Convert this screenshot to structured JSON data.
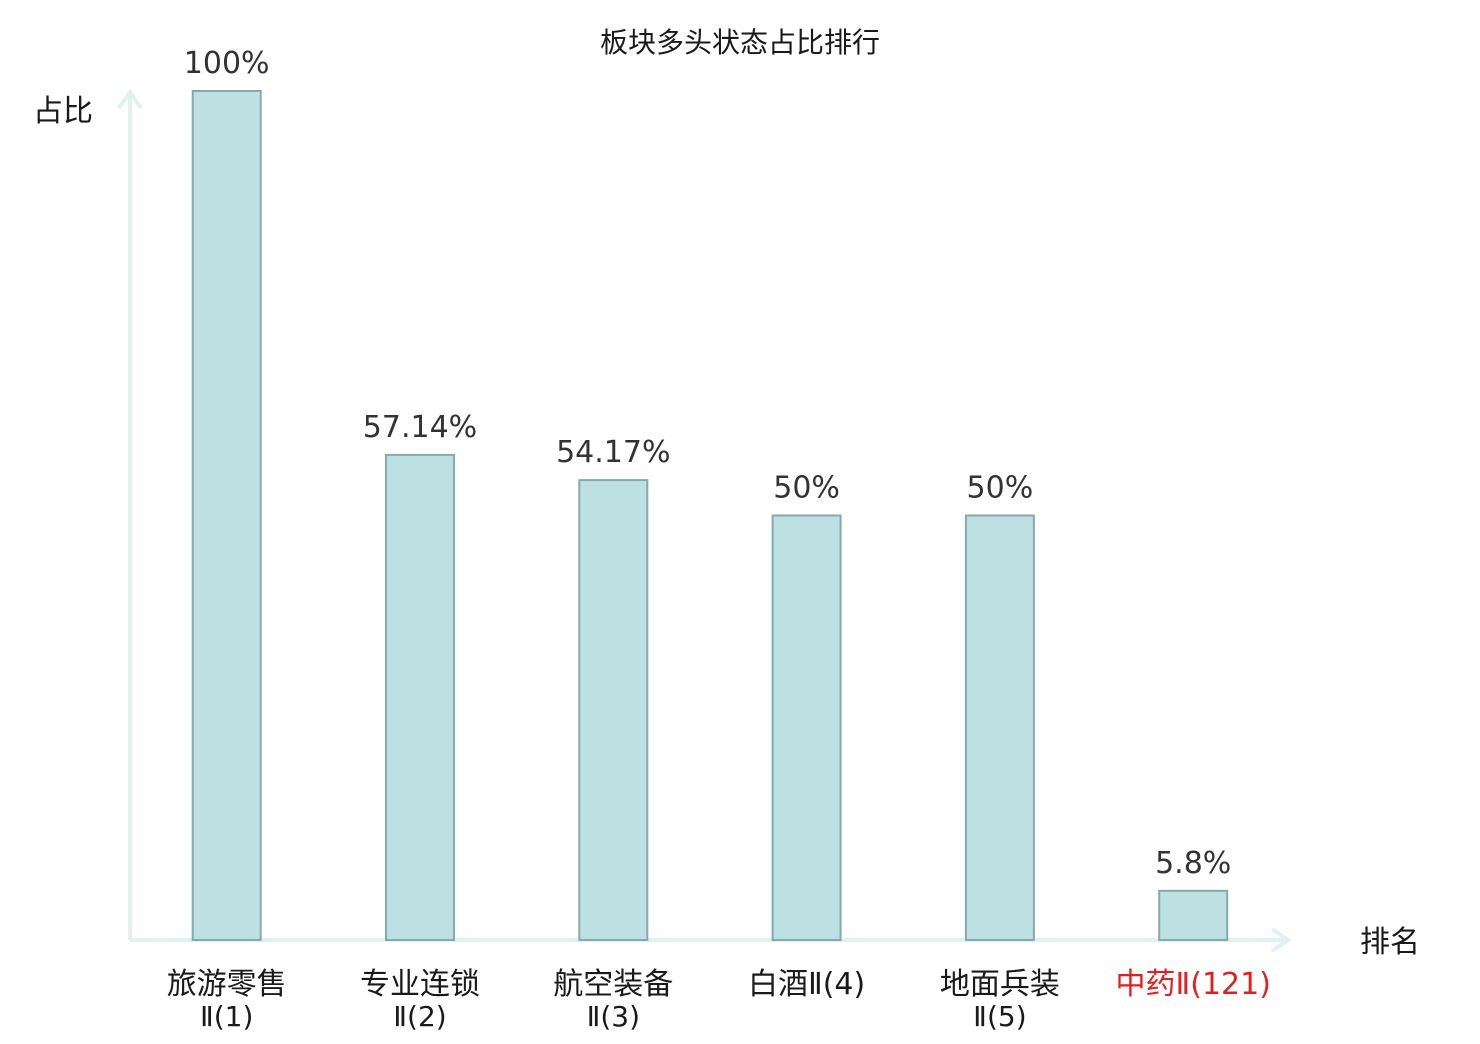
{
  "chart_data": {
    "type": "bar",
    "title": "板块多头状态占比排行",
    "xlabel": "排名",
    "ylabel": "占比",
    "ylim": [
      0,
      100
    ],
    "grid": false,
    "categories": [
      {
        "main": "旅游零售",
        "sub": "Ⅱ(1)",
        "highlight": false
      },
      {
        "main": "专业连锁",
        "sub": "Ⅱ(2)",
        "highlight": false
      },
      {
        "main": "航空装备",
        "sub": "Ⅱ(3)",
        "highlight": false
      },
      {
        "main": "白酒Ⅱ(4)",
        "sub": "",
        "highlight": false
      },
      {
        "main": "地面兵装",
        "sub": "Ⅱ(5)",
        "highlight": false
      },
      {
        "main": "中药Ⅱ(121)",
        "sub": "",
        "highlight": true
      }
    ],
    "values": [
      100,
      57.14,
      54.17,
      50,
      50,
      5.8
    ],
    "value_labels": [
      "100%",
      "57.14%",
      "54.17%",
      "50%",
      "50%",
      "5.8%"
    ],
    "colors": {
      "bar_fill": "#bde0e3",
      "bar_stroke": "#86a9ac",
      "axis": "#dff2ef",
      "text": "#1a1a1a",
      "highlight_text": "#e02020"
    }
  }
}
